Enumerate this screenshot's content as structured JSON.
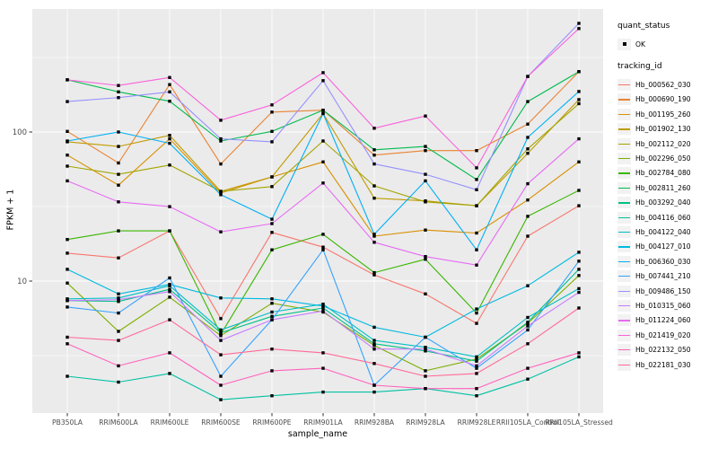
{
  "style": {
    "panel_bg": "#EBEBEB",
    "grid_color": "#FFFFFF",
    "axis_text_color": "#4D4D4D",
    "tick_color": "#333333",
    "point_color": "#000000",
    "legend_key_bg": "#F2F2F2"
  },
  "legend": {
    "quant_status_title": "quant_status",
    "quant_status_value": "OK",
    "tracking_id_title": "tracking_id"
  },
  "chart_data": {
    "type": "line",
    "title": "",
    "xlabel": "sample_name",
    "ylabel": "FPKM + 1",
    "y_scale": "log10",
    "y_ticks": [
      100,
      10
    ],
    "y_minor_ticks": [
      316.23,
      31.623,
      3.1623
    ],
    "ylim": [
      1.3,
      700
    ],
    "grid": true,
    "legend_position": "right",
    "point_shape": "filled-square",
    "categories": [
      "PB350LA",
      "RRIM600LA",
      "RRIM600LE",
      "RRIM600SE",
      "RRIM600PE",
      "RRIM901LA",
      "RRIM928BA",
      "RRIM928LA",
      "RRIM928LE",
      "RRII105LA_Control",
      "RRII105LA_Stressed"
    ],
    "series": [
      {
        "name": "Hb_000562_030",
        "color": "#F8766D",
        "values": [
          15.4,
          14.3,
          21.7,
          5.6,
          21.2,
          16.9,
          11.0,
          8.2,
          5.2,
          20,
          32
        ]
      },
      {
        "name": "Hb_000690_190",
        "color": "#EA8331",
        "values": [
          101,
          62,
          208,
          61,
          136,
          140,
          70,
          75,
          75,
          113,
          254
        ]
      },
      {
        "name": "Hb_001195_260",
        "color": "#D89000",
        "values": [
          70,
          44,
          90,
          39,
          50,
          63,
          20,
          22,
          21,
          35,
          63
        ]
      },
      {
        "name": "Hb_001902_130",
        "color": "#C09B00",
        "values": [
          86,
          80,
          95,
          40,
          50,
          133,
          36,
          34.5,
          32,
          72,
          165
        ]
      },
      {
        "name": "Hb_002112_020",
        "color": "#A3A500",
        "values": [
          59,
          52,
          60,
          40,
          43,
          87,
          43.5,
          34,
          32,
          77,
          155
        ]
      },
      {
        "name": "Hb_002296_050",
        "color": "#7CAE00",
        "values": [
          9.7,
          4.6,
          7.8,
          4.3,
          7.1,
          6.2,
          3.7,
          2.5,
          3.0,
          5.2,
          10.9
        ]
      },
      {
        "name": "Hb_002784_080",
        "color": "#39B600",
        "values": [
          19,
          21.7,
          21.7,
          4.4,
          16.2,
          20.6,
          11.4,
          14,
          6.1,
          27.2,
          40.6
        ]
      },
      {
        "name": "Hb_002811_260",
        "color": "#00BB4E",
        "values": [
          224,
          186,
          161,
          87,
          101,
          140,
          76,
          80,
          48,
          160,
          254
        ]
      },
      {
        "name": "Hb_003292_040",
        "color": "#00C087",
        "values": [
          7.4,
          7.3,
          8.8,
          4.5,
          5.8,
          6.6,
          3.8,
          3.4,
          2.9,
          5.3,
          12
        ]
      },
      {
        "name": "Hb_004116_060",
        "color": "#00C1A3",
        "values": [
          2.3,
          2.1,
          2.4,
          1.6,
          1.7,
          1.8,
          1.8,
          1.9,
          1.7,
          2.2,
          3.1
        ]
      },
      {
        "name": "Hb_004122_040",
        "color": "#00BFC4",
        "values": [
          7.6,
          7.7,
          9.3,
          4.7,
          6.2,
          7.0,
          4.0,
          3.6,
          3.1,
          5.7,
          8.9
        ]
      },
      {
        "name": "Hb_004127_010",
        "color": "#00BAE0",
        "values": [
          12,
          8.2,
          9.5,
          7.7,
          7.6,
          6.8,
          4.9,
          4.2,
          6.5,
          9.3,
          15.6
        ]
      },
      {
        "name": "Hb_006360_030",
        "color": "#00B0F6",
        "values": [
          87,
          100,
          84,
          38,
          26,
          133,
          20.6,
          47,
          16.2,
          92,
          187
        ]
      },
      {
        "name": "Hb_007441_210",
        "color": "#35A2FF",
        "values": [
          6.7,
          6.1,
          10.5,
          2.3,
          5.5,
          16.2,
          2.0,
          4.2,
          2.6,
          4.7,
          13.6
        ]
      },
      {
        "name": "Hb_009486_150",
        "color": "#9590FF",
        "values": [
          160,
          170,
          186,
          90,
          86,
          221,
          61,
          52,
          41,
          236,
          536
        ]
      },
      {
        "name": "Hb_010315_060",
        "color": "#C77CFF",
        "values": [
          7.4,
          7.5,
          8.5,
          4.0,
          5.5,
          6.3,
          3.5,
          3.5,
          2.7,
          5.0,
          8.4
        ]
      },
      {
        "name": "Hb_011224_060",
        "color": "#E76BF3",
        "values": [
          47,
          34,
          31.6,
          21.4,
          24.3,
          45.5,
          18.2,
          14.6,
          12.8,
          45,
          90
        ]
      },
      {
        "name": "Hb_021419_020",
        "color": "#FA62DB",
        "values": [
          224,
          205,
          232,
          120,
          152,
          250,
          106,
          128,
          57.5,
          236,
          494
        ]
      },
      {
        "name": "Hb_022132_050",
        "color": "#FF62BC",
        "values": [
          3.8,
          2.7,
          3.3,
          2.0,
          2.5,
          2.6,
          2.0,
          1.9,
          1.9,
          2.6,
          3.3
        ]
      },
      {
        "name": "Hb_022181_030",
        "color": "#FF6A98",
        "values": [
          4.2,
          4.0,
          5.5,
          3.2,
          3.5,
          3.3,
          2.8,
          2.3,
          2.4,
          3.8,
          6.6
        ]
      }
    ]
  }
}
